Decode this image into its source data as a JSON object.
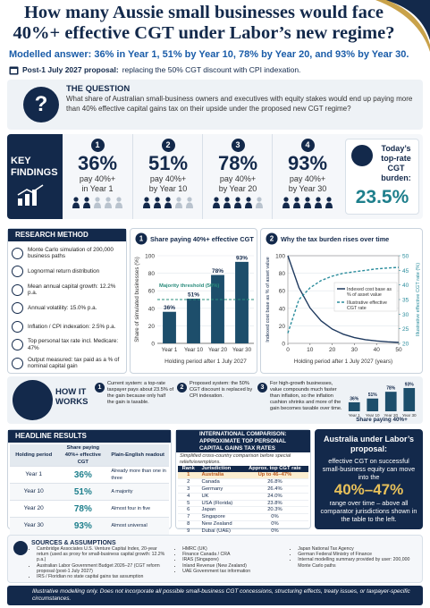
{
  "header": {
    "title": "How many Aussie small businesses would face 40%+ effective CGT under Labor’s new regime?",
    "subtitle": "Modelled answer: 36% in Year 1, 51% by Year 10, 78% by Year 20, and 93% by Year 30.",
    "proposal_label": "Post-1 July 2027 proposal:",
    "proposal_text": "replacing the 50% CGT discount with CPI indexation."
  },
  "question": {
    "icon": "?",
    "heading": "THE QUESTION",
    "text": "What share of Australian small-business owners and executives with equity stakes would end up paying more than 40% effective capital gains tax on their upside under the proposed new CGT regime?"
  },
  "key_findings": {
    "label": "KEY FINDINGS",
    "items": [
      {
        "number": "1",
        "value": 36,
        "value_label": "36%",
        "text": "pay 40%+",
        "period": "in Year 1"
      },
      {
        "number": "2",
        "value": 51,
        "value_label": "51%",
        "text": "pay 40%+",
        "period": "by Year 10"
      },
      {
        "number": "3",
        "value": 78,
        "value_label": "78%",
        "text": "pay 40%+",
        "period": "by Year 20"
      },
      {
        "number": "4",
        "value": 93,
        "value_label": "93%",
        "text": "pay 40%+",
        "period": "by Year 30"
      }
    ]
  },
  "today": {
    "label": "Today’s top-rate CGT burden:",
    "value": "23.5%"
  },
  "research_method": {
    "title": "RESEARCH METHOD",
    "items": [
      "Monte Carlo simulation of 200,000 business paths",
      "Lognormal return distribution",
      "Mean annual capital growth: 12.2% p.a.",
      "Annual volatility: 15.0% p.a.",
      "Inflation / CPI indexation: 2.5% p.a.",
      "Top personal tax rate incl. Medicare: 47%",
      "Output measured: tax paid as a % of nominal capital gain"
    ]
  },
  "chart_data": [
    {
      "type": "bar",
      "number": "1",
      "title": "Share paying 40%+ effective CGT",
      "y_label": "Share of simulated businesses (%)",
      "x_label": "Holding period after 1 July 2027",
      "categories": [
        "Year 1",
        "Year 10",
        "Year 20",
        "Year 30"
      ],
      "values": [
        36,
        51,
        78,
        93
      ],
      "value_labels": [
        "36%",
        "51%",
        "78%",
        "93%"
      ],
      "color": "#1d4e6b",
      "ylim": [
        0,
        100
      ],
      "yticks": [
        0,
        20,
        40,
        60,
        80,
        100
      ],
      "grid": true,
      "threshold": {
        "value": 50,
        "label": "Majority threshold (50%)",
        "color": "#2a8c7c"
      }
    },
    {
      "type": "line",
      "number": "2",
      "title": "Why the tax burden rises over time",
      "y_label": "Indexed cost base as % of asset value",
      "y2_label": "Illustrative effective CGT rate (%)",
      "x_label": "Holding period after 1 July 2027 (years)",
      "x": [
        0,
        5,
        10,
        15,
        20,
        25,
        30,
        35,
        40,
        45,
        50
      ],
      "xlim": [
        0,
        50
      ],
      "xticks": [
        0,
        10,
        20,
        30,
        40,
        50
      ],
      "ylim": [
        0,
        100
      ],
      "yticks": [
        0,
        20,
        40,
        60,
        80,
        100
      ],
      "y2lim": [
        20,
        50
      ],
      "y2ticks": [
        20,
        25,
        30,
        35,
        40,
        45,
        50
      ],
      "grid": true,
      "legend": "upper right",
      "series": [
        {
          "name": "Indexed cost base as % of asset value",
          "color": "#1f3a5f",
          "dash": false,
          "values": [
            100,
            63.6,
            40.4,
            25.7,
            16.3,
            10.4,
            6.6,
            4.2,
            2.7,
            1.7,
            1.1
          ]
        },
        {
          "name": "Illustrative effective CGT rate",
          "color": "#2a8c9c",
          "dash": true,
          "axis": "y2",
          "values": [
            23.5,
            35,
            39,
            41.5,
            43,
            44,
            44.5,
            45,
            45.5,
            45.8,
            46
          ]
        }
      ]
    },
    {
      "type": "bar",
      "caption": "Share paying 40%+",
      "categories": [
        "Year 1",
        "Year 10",
        "Year 20",
        "Year 30"
      ],
      "values": [
        36,
        51,
        78,
        93
      ],
      "value_labels": [
        "36%",
        "51%",
        "78%",
        "93%"
      ],
      "color": "#1d4e6b",
      "ylim": [
        0,
        100
      ]
    }
  ],
  "how_it_works": {
    "label": "HOW IT WORKS",
    "steps": [
      {
        "number": "1",
        "text": "Current system: a top-rate taxpayer pays about 23.5% of the gain because only half the gain is taxable."
      },
      {
        "number": "2",
        "text": "Proposed system: the 50% CGT discount is replaced by CPI indexation."
      },
      {
        "number": "3",
        "text": "For high-growth businesses, value compounds much faster than inflation, so the inflation cushion shrinks and more of the gain becomes taxable over time."
      }
    ]
  },
  "headline_results": {
    "title": "HEADLINE RESULTS",
    "columns": [
      "Holding period",
      "Share paying 40%+ effective CGT",
      "Plain-English readout"
    ],
    "rows": [
      [
        "Year 1",
        "36%",
        "Already more than one in three"
      ],
      [
        "Year 10",
        "51%",
        "A majority"
      ],
      [
        "Year 20",
        "78%",
        "Almost four in five"
      ],
      [
        "Year 30",
        "93%",
        "Almost universal"
      ]
    ]
  },
  "international": {
    "title": "INTERNATIONAL COMPARISON: APPROXIMATE TOP PERSONAL CAPITAL GAINS TAX RATES",
    "note": "Simplified cross-country comparison before special reliefs/exemptions.",
    "columns": [
      "Rank",
      "Jurisdiction",
      "Approx. top CGT rate"
    ],
    "rows": [
      [
        "1",
        "Australia",
        "Up to 46–47%"
      ],
      [
        "2",
        "Canada",
        "26.8%"
      ],
      [
        "3",
        "Germany",
        "26.4%"
      ],
      [
        "4",
        "UK",
        "24.0%"
      ],
      [
        "5",
        "USA (Florida)",
        "23.8%"
      ],
      [
        "6",
        "Japan",
        "20.3%"
      ],
      [
        "7",
        "Singapore",
        "0%"
      ],
      [
        "8",
        "New Zealand",
        "0%"
      ],
      [
        "9",
        "Dubai (UAE)",
        "0%"
      ]
    ]
  },
  "australia_box": {
    "title": "Australia under Labor’s proposal:",
    "text": "effective CGT on successful small-business equity can move into the",
    "highlight": "40%–47%",
    "text_after": "range over time – above all comparator jurisdictions shown in the table to the left."
  },
  "sources": {
    "title": "SOURCES & ASSUMPTIONS",
    "columns": [
      [
        "Cambridge Associates U.S. Venture Capital Index, 20-year return (used as proxy for small-business capital growth: 12.2% p.a.)",
        "Australian Labor Government Budget 2026–27 (CGT reform proposal (post-1 July 2027)",
        "IRS / Floridian no state capital gains tax assumption"
      ],
      [
        "HMRC (UK)",
        "Finance Canada / CRA",
        "IRAS (Singapore)",
        "Inland Revenue (New Zealand)",
        "UAE Government tax information"
      ],
      [
        "Japan National Tax Agency",
        "German Federal Ministry of Finance",
        "Internal modelling summary provided by user: 200,000 Monte Carlo paths"
      ]
    ]
  },
  "footer": "Illustrative modelling only. Does not incorporate all possible small-business CGT concessions, structuring effects, treaty issues, or taxpayer-specific circumstances."
}
